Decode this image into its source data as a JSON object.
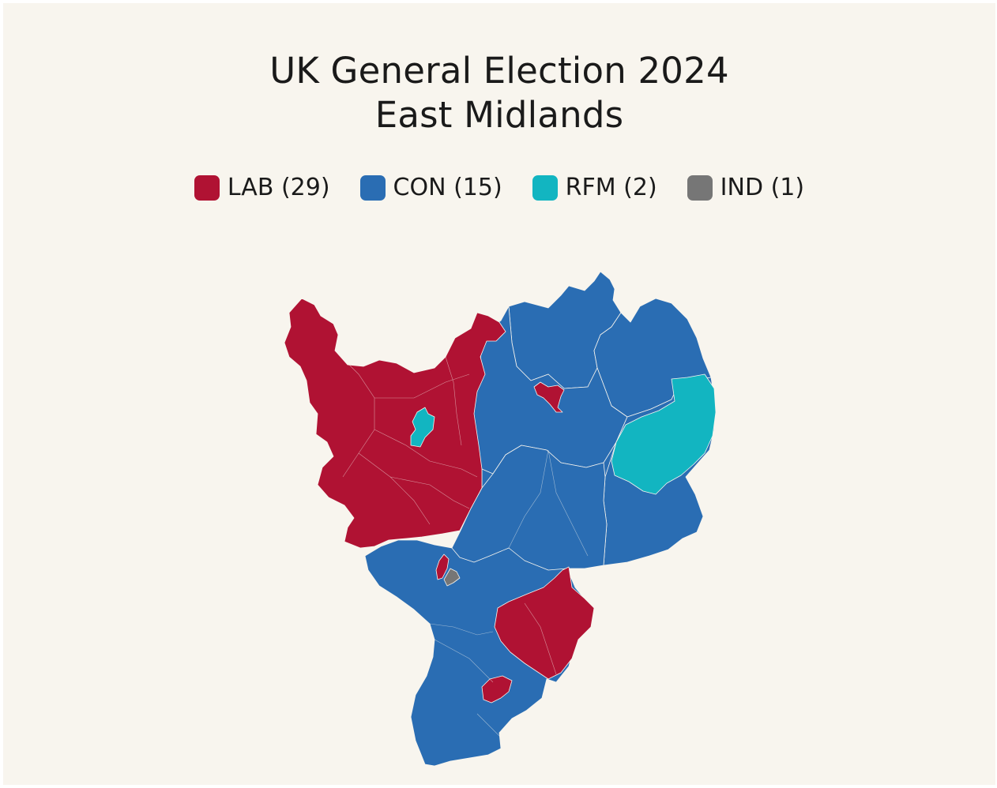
{
  "title": {
    "line1": "UK General Election 2024",
    "line2": "East Midlands"
  },
  "legend": [
    {
      "label": "LAB (29)",
      "party": "LAB",
      "color": "#b01233"
    },
    {
      "label": "CON (15)",
      "party": "CON",
      "color": "#2a6db3"
    },
    {
      "label": "RFM (2)",
      "party": "RFM",
      "color": "#12b5c1"
    },
    {
      "label": "IND (1)",
      "party": "IND",
      "color": "#767676"
    }
  ]
}
